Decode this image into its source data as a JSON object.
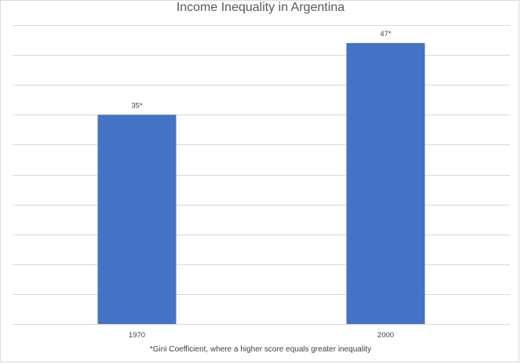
{
  "chart_data": {
    "type": "bar",
    "title": "Income Inequality in Argentina",
    "categories": [
      "1970",
      "2000"
    ],
    "values": [
      35,
      47
    ],
    "data_labels": [
      "35*",
      "47*"
    ],
    "xlabel": "",
    "ylabel": "",
    "ylim": [
      0,
      50
    ],
    "grid": true,
    "footnote": "*Gini Coefficient, where a higher score equals greater inequality",
    "colors": {
      "bar": "#4472c4",
      "grid": "#d9d9d9"
    }
  }
}
